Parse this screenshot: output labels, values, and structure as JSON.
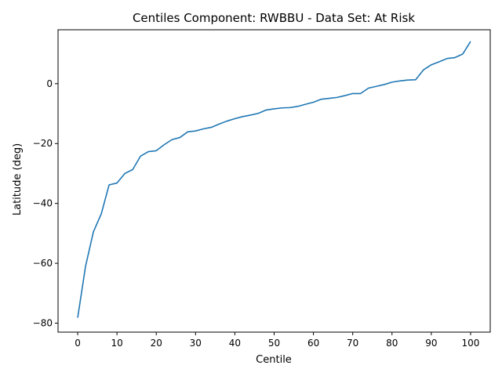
{
  "chart_data": {
    "type": "line",
    "title": "Centiles Component: RWBBU - Data Set: At Risk",
    "xlabel": "Centile",
    "ylabel": "Latitude (deg)",
    "xlim": [
      -5,
      105
    ],
    "ylim": [
      -83,
      18
    ],
    "xticks": [
      0,
      10,
      20,
      30,
      40,
      50,
      60,
      70,
      80,
      90,
      100
    ],
    "yticks": [
      -80,
      -60,
      -40,
      -20,
      0
    ],
    "ytick_labels": [
      "−80",
      "−60",
      "−40",
      "−20",
      "0"
    ],
    "grid": false,
    "line_color": "#1f77b4",
    "x": [
      0,
      2,
      4,
      6,
      8,
      10,
      12,
      14,
      16,
      18,
      20,
      22,
      24,
      26,
      28,
      30,
      32,
      34,
      36,
      38,
      40,
      42,
      44,
      46,
      48,
      50,
      52,
      54,
      56,
      58,
      60,
      62,
      64,
      66,
      68,
      70,
      72,
      74,
      76,
      78,
      80,
      82,
      84,
      86,
      88,
      90,
      92,
      94,
      96,
      98,
      100
    ],
    "y": [
      -78.2,
      -61,
      -49.5,
      -43.5,
      -33.8,
      -33.2,
      -30,
      -28.7,
      -24.2,
      -22.7,
      -22.4,
      -20.4,
      -18.7,
      -18,
      -16.1,
      -15.8,
      -15.1,
      -14.6,
      -13.5,
      -12.5,
      -11.7,
      -11,
      -10.5,
      -9.9,
      -8.8,
      -8.4,
      -8.1,
      -8,
      -7.6,
      -6.9,
      -6.2,
      -5.2,
      -4.9,
      -4.6,
      -4,
      -3.3,
      -3.3,
      -1.5,
      -0.9,
      -0.3,
      0.5,
      0.9,
      1.2,
      1.3,
      4.6,
      6.3,
      7.3,
      8.4,
      8.7,
      9.9,
      14.1
    ]
  }
}
